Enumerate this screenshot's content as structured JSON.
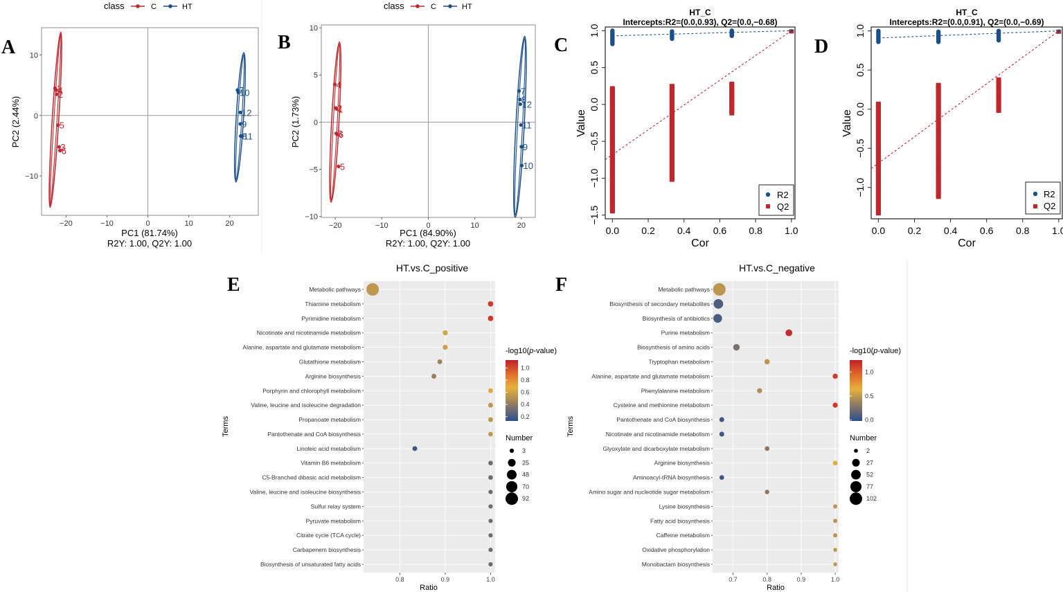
{
  "colors": {
    "c_class": "#c0272d",
    "ht_class": "#1b4f8a",
    "panel_bg": "#ebebeb",
    "grid": "#ffffff",
    "low": "#2b4f8c",
    "mid": "#e8b13a",
    "high": "#c21f2a"
  },
  "panel_labels": {
    "A": "A",
    "B": "B",
    "C": "C",
    "D": "D",
    "E": "E",
    "F": "F"
  },
  "chart_data": [
    {
      "id": "A",
      "type": "scatter",
      "legend": {
        "title": "class",
        "items": [
          "C",
          "HT"
        ]
      },
      "xlabel": "PC1 (81.74%)",
      "ylabel": "PC2 (2.44%)",
      "subtitle": "R2Y: 1.00, Q2Y: 1.00",
      "xlim": [
        -26,
        27
      ],
      "ylim": [
        -16.5,
        14.5
      ],
      "xticks": [
        -20,
        -10,
        0,
        10,
        20
      ],
      "yticks": [
        -10,
        0,
        10
      ],
      "xtick_labels": [
        "−20",
        "−10",
        "0",
        "10",
        "20"
      ],
      "ytick_labels": [
        "−10",
        "0",
        "10"
      ],
      "series": [
        {
          "name": "C",
          "points": [
            {
              "x": -22.7,
              "y": 4.5,
              "label": "1"
            },
            {
              "x": -22.4,
              "y": 4.2,
              "label": "4"
            },
            {
              "x": -22.3,
              "y": 3.5,
              "label": "2"
            },
            {
              "x": -22.0,
              "y": -1.6,
              "label": "5"
            },
            {
              "x": -21.7,
              "y": -5.2,
              "label": "3"
            },
            {
              "x": -21.5,
              "y": -5.8,
              "label": "6"
            }
          ],
          "ellipse": {
            "cx": -22.6,
            "cy": -0.7,
            "rx": 0.8,
            "ry": 14.5,
            "angle": 3.5
          }
        },
        {
          "name": "HT",
          "points": [
            {
              "x": 21.9,
              "y": 4.2,
              "label": "7"
            },
            {
              "x": 22.1,
              "y": 3.8,
              "label": "10"
            },
            {
              "x": 22.6,
              "y": 0.5,
              "label": "12"
            },
            {
              "x": 22.6,
              "y": -1.4,
              "label": "9"
            },
            {
              "x": 22.7,
              "y": -3.4,
              "label": "8"
            },
            {
              "x": 23.0,
              "y": -3.4,
              "label": "11"
            }
          ],
          "ellipse": {
            "cx": 22.5,
            "cy": -0.3,
            "rx": 0.9,
            "ry": 10.7,
            "angle": 3.5
          }
        }
      ]
    },
    {
      "id": "B",
      "type": "scatter",
      "legend": {
        "title": "class",
        "items": [
          "C",
          "HT"
        ]
      },
      "xlabel": "PC1 (84.90%)",
      "ylabel": "PC2 (1.73%)",
      "subtitle": "R2Y: 1.00, Q2Y: 1.00",
      "xlim": [
        -23,
        23
      ],
      "ylim": [
        -10.1,
        10.3
      ],
      "xticks": [
        -20,
        -10,
        0,
        10,
        20
      ],
      "yticks": [
        -10,
        -5,
        0,
        5,
        10
      ],
      "xtick_labels": [
        "−20",
        "−10",
        "0",
        "10",
        "20"
      ],
      "ytick_labels": [
        "−10",
        "−5",
        "0",
        "5",
        "10"
      ],
      "series": [
        {
          "name": "C",
          "points": [
            {
              "x": -20.1,
              "y": 4.0,
              "label": "4"
            },
            {
              "x": -19.9,
              "y": 1.5,
              "label": "2"
            },
            {
              "x": -19.7,
              "y": 1.4,
              "label": "1"
            },
            {
              "x": -19.8,
              "y": -1.2,
              "label": "3"
            },
            {
              "x": -19.6,
              "y": -1.3,
              "label": "6"
            },
            {
              "x": -19.3,
              "y": -4.7,
              "label": "5"
            }
          ],
          "ellipse": {
            "cx": -20.0,
            "cy": 0.0,
            "rx": 0.8,
            "ry": 8.5,
            "angle": 3
          }
        },
        {
          "name": "HT",
          "points": [
            {
              "x": 19.5,
              "y": 3.3,
              "label": "7"
            },
            {
              "x": 19.7,
              "y": 2.4,
              "label": "8"
            },
            {
              "x": 19.8,
              "y": 1.9,
              "label": "12"
            },
            {
              "x": 19.9,
              "y": -0.3,
              "label": "11"
            },
            {
              "x": 20.0,
              "y": -2.6,
              "label": "9"
            },
            {
              "x": 20.1,
              "y": -4.6,
              "label": "10"
            }
          ],
          "ellipse": {
            "cx": 19.7,
            "cy": -0.5,
            "rx": 0.9,
            "ry": 9.6,
            "angle": 3
          }
        }
      ]
    },
    {
      "id": "C",
      "type": "scatter",
      "title": "HT_C",
      "subtitle": "Intercepts:R2=(0.0,0.93), Q2=(0.0,−0.68)",
      "xlabel": "Cor",
      "ylabel": "Value",
      "xlim": [
        -0.04,
        1.02
      ],
      "ylim": [
        -1.55,
        1.05
      ],
      "xticks": [
        0,
        0.2,
        0.4,
        0.6,
        0.8,
        1.0
      ],
      "yticks": [
        -1.5,
        -1.0,
        -0.5,
        0.0,
        0.5,
        1.0
      ],
      "xtick_labels": [
        "0.0",
        "0.2",
        "0.4",
        "0.6",
        "0.8",
        "1.0"
      ],
      "ytick_labels": [
        "−1.5",
        "−1.0",
        "−0.5",
        "0.0",
        "0.5",
        "1.0"
      ],
      "legend": [
        "R2",
        "Q2"
      ],
      "r2_columns": [
        {
          "x": 0,
          "min": 0.82,
          "max": 1.0
        },
        {
          "x": 0.333,
          "min": 0.89,
          "max": 0.99
        },
        {
          "x": 0.667,
          "min": 0.93,
          "max": 1.0
        }
      ],
      "q2_columns": [
        {
          "x": 0,
          "min": -1.45,
          "max": 0.22
        },
        {
          "x": 0.333,
          "min": -1.02,
          "max": 0.25
        },
        {
          "x": 0.667,
          "min": -0.12,
          "max": 0.28
        }
      ],
      "endpoints": {
        "r2": 1.0,
        "q2": 0.99
      },
      "r2_line": [
        0.93,
        1.0
      ],
      "q2_line": [
        -0.68,
        1.0
      ]
    },
    {
      "id": "D",
      "type": "scatter",
      "title": "HT_C",
      "subtitle": "Intercepts:R2=(0.0,0.91), Q2=(0.0,−0.69)",
      "xlabel": "Cor",
      "ylabel": "Value",
      "xlim": [
        -0.04,
        1.02
      ],
      "ylim": [
        -1.4,
        1.05
      ],
      "xticks": [
        0,
        0.2,
        0.4,
        0.6,
        0.8,
        1.0
      ],
      "yticks": [
        -1.0,
        -0.5,
        0.0,
        0.5,
        1.0
      ],
      "xtick_labels": [
        "0.0",
        "0.2",
        "0.4",
        "0.6",
        "0.8",
        "1.0"
      ],
      "ytick_labels": [
        "−1.0",
        "−0.5",
        "0.0",
        "0.5",
        "1.0"
      ],
      "legend": [
        "R2",
        "Q2"
      ],
      "r2_columns": [
        {
          "x": 0,
          "min": 0.86,
          "max": 1.0
        },
        {
          "x": 0.333,
          "min": 0.86,
          "max": 0.99
        },
        {
          "x": 0.667,
          "min": 0.88,
          "max": 1.0
        }
      ],
      "q2_columns": [
        {
          "x": 0,
          "min": -1.33,
          "max": 0.07
        },
        {
          "x": 0.333,
          "min": -1.12,
          "max": 0.31
        },
        {
          "x": 0.667,
          "min": -0.02,
          "max": 0.38
        }
      ],
      "endpoints": {
        "r2": 1.0,
        "q2": 0.99
      },
      "r2_line": [
        0.91,
        1.0
      ],
      "q2_line": [
        -0.69,
        1.0
      ]
    },
    {
      "id": "E",
      "type": "scatter",
      "title": "HT.vs.C_positive",
      "xlabel": "Ratio",
      "ylabel": "Terms",
      "xlim": [
        0.72,
        1.01
      ],
      "xticks": [
        0.8,
        0.9,
        1.0
      ],
      "xtick_labels": [
        "0.8",
        "0.9",
        "1.0"
      ],
      "color_legend": {
        "title_prefix": "-log10(",
        "title_italic": "p",
        "title_suffix": "-value)",
        "ticks": [
          "1.0",
          "0.8",
          "0.6",
          "0.4",
          "0.2"
        ],
        "tick_values": [
          1.0,
          0.8,
          0.6,
          0.4,
          0.2
        ],
        "min": 0.13,
        "max": 1.13
      },
      "size_legend": {
        "title": "Number",
        "values": [
          "3",
          "25",
          "48",
          "70",
          "92"
        ],
        "nums": [
          3,
          25,
          48,
          70,
          92
        ]
      },
      "terms": [
        {
          "term": "Metabolic pathways",
          "ratio": 0.74,
          "number": 92,
          "p": 0.55
        },
        {
          "term": "Thiamine metabolism",
          "ratio": 1.0,
          "number": 8,
          "p": 1.05
        },
        {
          "term": "Pyrimidine metabolism",
          "ratio": 1.0,
          "number": 8,
          "p": 1.05
        },
        {
          "term": "Nicotinate and nicotinamide metabolism",
          "ratio": 0.9,
          "number": 6,
          "p": 0.62
        },
        {
          "term": "Alanine, aspartate and glutamate metabolism",
          "ratio": 0.9,
          "number": 6,
          "p": 0.6
        },
        {
          "term": "Glutathione metabolism",
          "ratio": 0.888,
          "number": 5,
          "p": 0.45
        },
        {
          "term": "Arginine biosynthesis",
          "ratio": 0.875,
          "number": 5,
          "p": 0.42
        },
        {
          "term": "Porphyrin and chlorophyll metabolism",
          "ratio": 1.0,
          "number": 5,
          "p": 0.65
        },
        {
          "term": "Valine, leucine and isoleucine degradation",
          "ratio": 1.0,
          "number": 5,
          "p": 0.55
        },
        {
          "term": "Propanoate metabolism",
          "ratio": 1.0,
          "number": 5,
          "p": 0.55
        },
        {
          "term": "Pantothenate and CoA biosynthesis",
          "ratio": 1.0,
          "number": 4,
          "p": 0.55
        },
        {
          "term": "Linoleic acid metabolism",
          "ratio": 0.833,
          "number": 5,
          "p": 0.18
        },
        {
          "term": "Vitamin B6 metabolism",
          "ratio": 1.0,
          "number": 4,
          "p": 0.3
        },
        {
          "term": "C5-Branched dibasic acid metabolism",
          "ratio": 1.0,
          "number": 4,
          "p": 0.3
        },
        {
          "term": "Valine, leucine and isoleucine biosynthesis",
          "ratio": 1.0,
          "number": 3,
          "p": 0.3
        },
        {
          "term": "Sulfur relay system",
          "ratio": 1.0,
          "number": 3,
          "p": 0.3
        },
        {
          "term": "Pyruvate metabolism",
          "ratio": 1.0,
          "number": 3,
          "p": 0.3
        },
        {
          "term": "Citrate cycle (TCA cycle)",
          "ratio": 1.0,
          "number": 3,
          "p": 0.3
        },
        {
          "term": "Carbapenem biosynthesis",
          "ratio": 1.0,
          "number": 3,
          "p": 0.3
        },
        {
          "term": "Biosynthesis of unsaturated fatty acids",
          "ratio": 1.0,
          "number": 3,
          "p": 0.3
        }
      ]
    },
    {
      "id": "F",
      "type": "scatter",
      "title": "HT.vs.C_negative",
      "xlabel": "Ratio",
      "ylabel": "Terms",
      "xlim": [
        0.64,
        1.01
      ],
      "xticks": [
        0.7,
        0.8,
        0.9,
        1.0
      ],
      "xtick_labels": [
        "0.7",
        "0.8",
        "0.9",
        "1.0"
      ],
      "color_legend": {
        "title_prefix": "-log10(",
        "title_italic": "p",
        "title_suffix": "-value)",
        "ticks": [
          "1.0",
          "0.5",
          "0.0"
        ],
        "tick_values": [
          1.0,
          0.5,
          0.0
        ],
        "min": -0.02,
        "max": 1.25
      },
      "size_legend": {
        "title": "Number",
        "values": [
          "2",
          "27",
          "52",
          "77",
          "102"
        ],
        "nums": [
          2,
          27,
          52,
          77,
          102
        ]
      },
      "terms": [
        {
          "term": "Metabolic pathways",
          "ratio": 0.66,
          "number": 102,
          "p": 0.5
        },
        {
          "term": "Biosynthesis of secondary metabolites",
          "ratio": 0.657,
          "number": 52,
          "p": 0.1
        },
        {
          "term": "Biosynthesis of antibiotics",
          "ratio": 0.655,
          "number": 40,
          "p": 0.08
        },
        {
          "term": "Purine metabolism",
          "ratio": 0.864,
          "number": 19,
          "p": 1.2
        },
        {
          "term": "Biosynthesis of amino acids",
          "ratio": 0.71,
          "number": 17,
          "p": 0.25
        },
        {
          "term": "Tryptophan metabolism",
          "ratio": 0.8,
          "number": 8,
          "p": 0.5
        },
        {
          "term": "Alanine, aspartate and glutamate metabolism",
          "ratio": 1.0,
          "number": 7,
          "p": 1.15
        },
        {
          "term": "Phenylalanine metabolism",
          "ratio": 0.778,
          "number": 7,
          "p": 0.45
        },
        {
          "term": "Cysteine and methionine metabolism",
          "ratio": 1.0,
          "number": 7,
          "p": 1.15
        },
        {
          "term": "Pantothenate and CoA biosynthesis",
          "ratio": 0.667,
          "number": 6,
          "p": 0.05
        },
        {
          "term": "Nicotinate and nicotinamide metabolism",
          "ratio": 0.667,
          "number": 6,
          "p": 0.05
        },
        {
          "term": "Glyoxylate and dicarboxylate metabolism",
          "ratio": 0.8,
          "number": 5,
          "p": 0.3
        },
        {
          "term": "Arginine biosynthesis",
          "ratio": 1.0,
          "number": 5,
          "p": 0.65
        },
        {
          "term": "Aminoacyl-tRNA biosynthesis",
          "ratio": 0.667,
          "number": 5,
          "p": 0.05
        },
        {
          "term": "Amino sugar and nucleotide sugar metabolism",
          "ratio": 0.8,
          "number": 4,
          "p": 0.3
        },
        {
          "term": "Lysine biosynthesis",
          "ratio": 1.0,
          "number": 3,
          "p": 0.5
        },
        {
          "term": "Fatty acid biosynthesis",
          "ratio": 1.0,
          "number": 3,
          "p": 0.5
        },
        {
          "term": "Caffeine metabolism",
          "ratio": 1.0,
          "number": 3,
          "p": 0.5
        },
        {
          "term": "Oxidative phosphorylation",
          "ratio": 1.0,
          "number": 2,
          "p": 0.5
        },
        {
          "term": "Monobactam biosynthesis",
          "ratio": 1.0,
          "number": 2,
          "p": 0.5
        }
      ]
    }
  ]
}
